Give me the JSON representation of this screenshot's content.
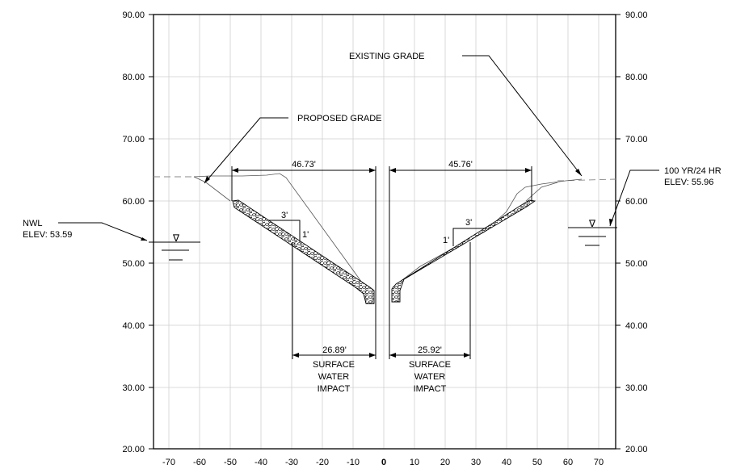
{
  "axes": {
    "x_ticks": [
      "-70",
      "-60",
      "-50",
      "-40",
      "-30",
      "-20",
      "-10",
      "0",
      "10",
      "20",
      "30",
      "40",
      "50",
      "60",
      "70"
    ],
    "y_ticks": [
      "90.00",
      "80.00",
      "70.00",
      "60.00",
      "50.00",
      "40.00",
      "30.00",
      "20.00"
    ]
  },
  "labels": {
    "existing_grade": "EXISTING GRADE",
    "proposed_grade": "PROPOSED GRADE",
    "nwl_line1": "NWL",
    "nwl_line2": "ELEV: 53.59",
    "storm_line1": "100 YR/24 HR",
    "storm_line2": "ELEV: 55.96"
  },
  "dimensions": {
    "left_top": "46.73'",
    "right_top": "45.76'",
    "left_bottom": "26.89'",
    "right_bottom": "25.92'",
    "slope_run_left": "3'",
    "slope_rise_left": "1'",
    "slope_run_right": "3'",
    "slope_rise_right": "1'"
  },
  "impact_left": [
    "SURFACE",
    "WATER",
    "IMPACT"
  ],
  "impact_right": [
    "SURFACE",
    "WATER",
    "IMPACT"
  ],
  "symbols": {
    "water_triangle": "∇"
  }
}
